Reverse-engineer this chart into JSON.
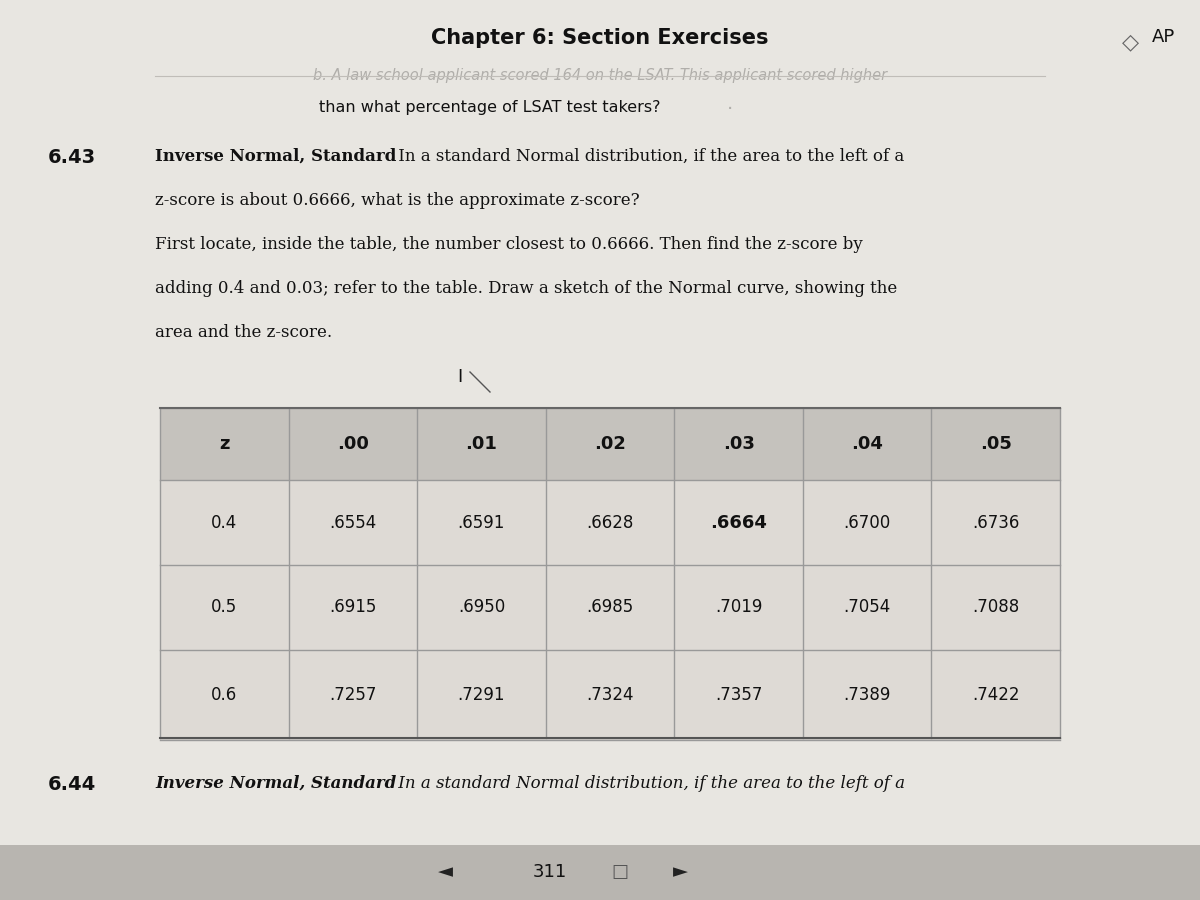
{
  "background_color": "#dbd8d3",
  "page_bg": "#e8e6e1",
  "title": "Chapter 6: Section Exercises",
  "top_right_text": "AP",
  "faded_line1": "b. A law school applicant scored 164 on the LSAT. This applicant scored higher",
  "line2": "than what percentage of LSAT test takers?",
  "section_num_643": "6.43",
  "section_num_644": "6.44",
  "para_643_bold": "Inverse Normal, Standard",
  "para_643_line1_rest": " In a standard Normal distribution, if the area to the left of a",
  "para_643_line2": "z-score is about 0.6666, what is the approximate z-score?",
  "para_643_line3": "First locate, inside the table, the number closest to 0.6666. Then find the z-score by",
  "para_643_line4": "adding 0.4 and 0.03; refer to the table. Draw a sketch of the Normal curve, showing the",
  "para_643_line5": "area and the z-score.",
  "para_644_bold": "Inverse Normal, Standard",
  "para_644_rest": " In a standard Normal distribution, if the area to the left of a",
  "table_header": [
    "z",
    ".00",
    ".01",
    ".02",
    ".03",
    ".04",
    ".05"
  ],
  "table_rows": [
    [
      "0.4",
      ".6554",
      ".6591",
      ".6628",
      ".6664",
      ".6700",
      ".6736"
    ],
    [
      "0.5",
      ".6915",
      ".6950",
      ".6985",
      ".7019",
      ".7054",
      ".7088"
    ],
    [
      "0.6",
      ".7257",
      ".7291",
      ".7324",
      ".7357",
      ".7389",
      ".7422"
    ]
  ],
  "bold_cell_row": 0,
  "bold_cell_col": 4,
  "col_highlight_idx": 2,
  "col_highlight_color": "#f0eda0",
  "header_bg": "#c5c2bd",
  "row_bg": "#dedad5",
  "table_line_color": "#999999",
  "bottom_text": "311",
  "nav_bg": "#b8b5b0",
  "faded_color": "#b0aeaa",
  "text_color": "#111111"
}
